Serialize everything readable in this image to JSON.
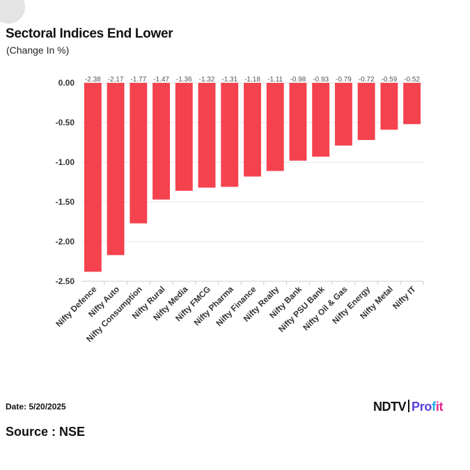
{
  "header": {
    "title": "Sectoral Indices End Lower",
    "subtitle": "(Change In %)"
  },
  "footer": {
    "date": "Date: 5/20/2025",
    "source": "Source : NSE"
  },
  "brand": {
    "ndtv": "NDTV",
    "profit_a": "Pro",
    "profit_b": "f",
    "profit_c": "it"
  },
  "colors": {
    "bar": "#f5424f",
    "grid": "#e6e6e6",
    "axis": "#cccccc"
  },
  "chart_data": {
    "type": "bar",
    "title": "Sectoral Indices End Lower",
    "subtitle": "(Change In %)",
    "categories": [
      "Nifty Defence",
      "Nifty Auto",
      "Nifty Consumption",
      "Nifty Rural",
      "Nifty Media",
      "Nifty FMCG",
      "Nifty Pharma",
      "Nifty Finance",
      "Nifty Realty",
      "Nifty Bank",
      "Nifty PSU Bank",
      "Nifty Oil & Gas",
      "Nifty Energy",
      "Nifty Metal",
      "Nifty IT"
    ],
    "values": [
      -2.38,
      -2.17,
      -1.77,
      -1.47,
      -1.36,
      -1.32,
      -1.31,
      -1.18,
      -1.11,
      -0.98,
      -0.93,
      -0.79,
      -0.72,
      -0.59,
      -0.52
    ],
    "value_labels": [
      "-2.38",
      "-2.17",
      "-1.77",
      "-1.47",
      "-1.36",
      "-1.32",
      "-1.31",
      "-1.18",
      "-1.11",
      "-0.98",
      "-0.93",
      "-0.79",
      "-0.72",
      "-0.59",
      "-0.52"
    ],
    "yticks": [
      "0.00",
      "-0.50",
      "-1.00",
      "-1.50",
      "-2.00",
      "-2.50"
    ],
    "ylim": [
      -2.5,
      0
    ],
    "xlabel": "",
    "ylabel": "",
    "grid": true,
    "legend": "none"
  }
}
